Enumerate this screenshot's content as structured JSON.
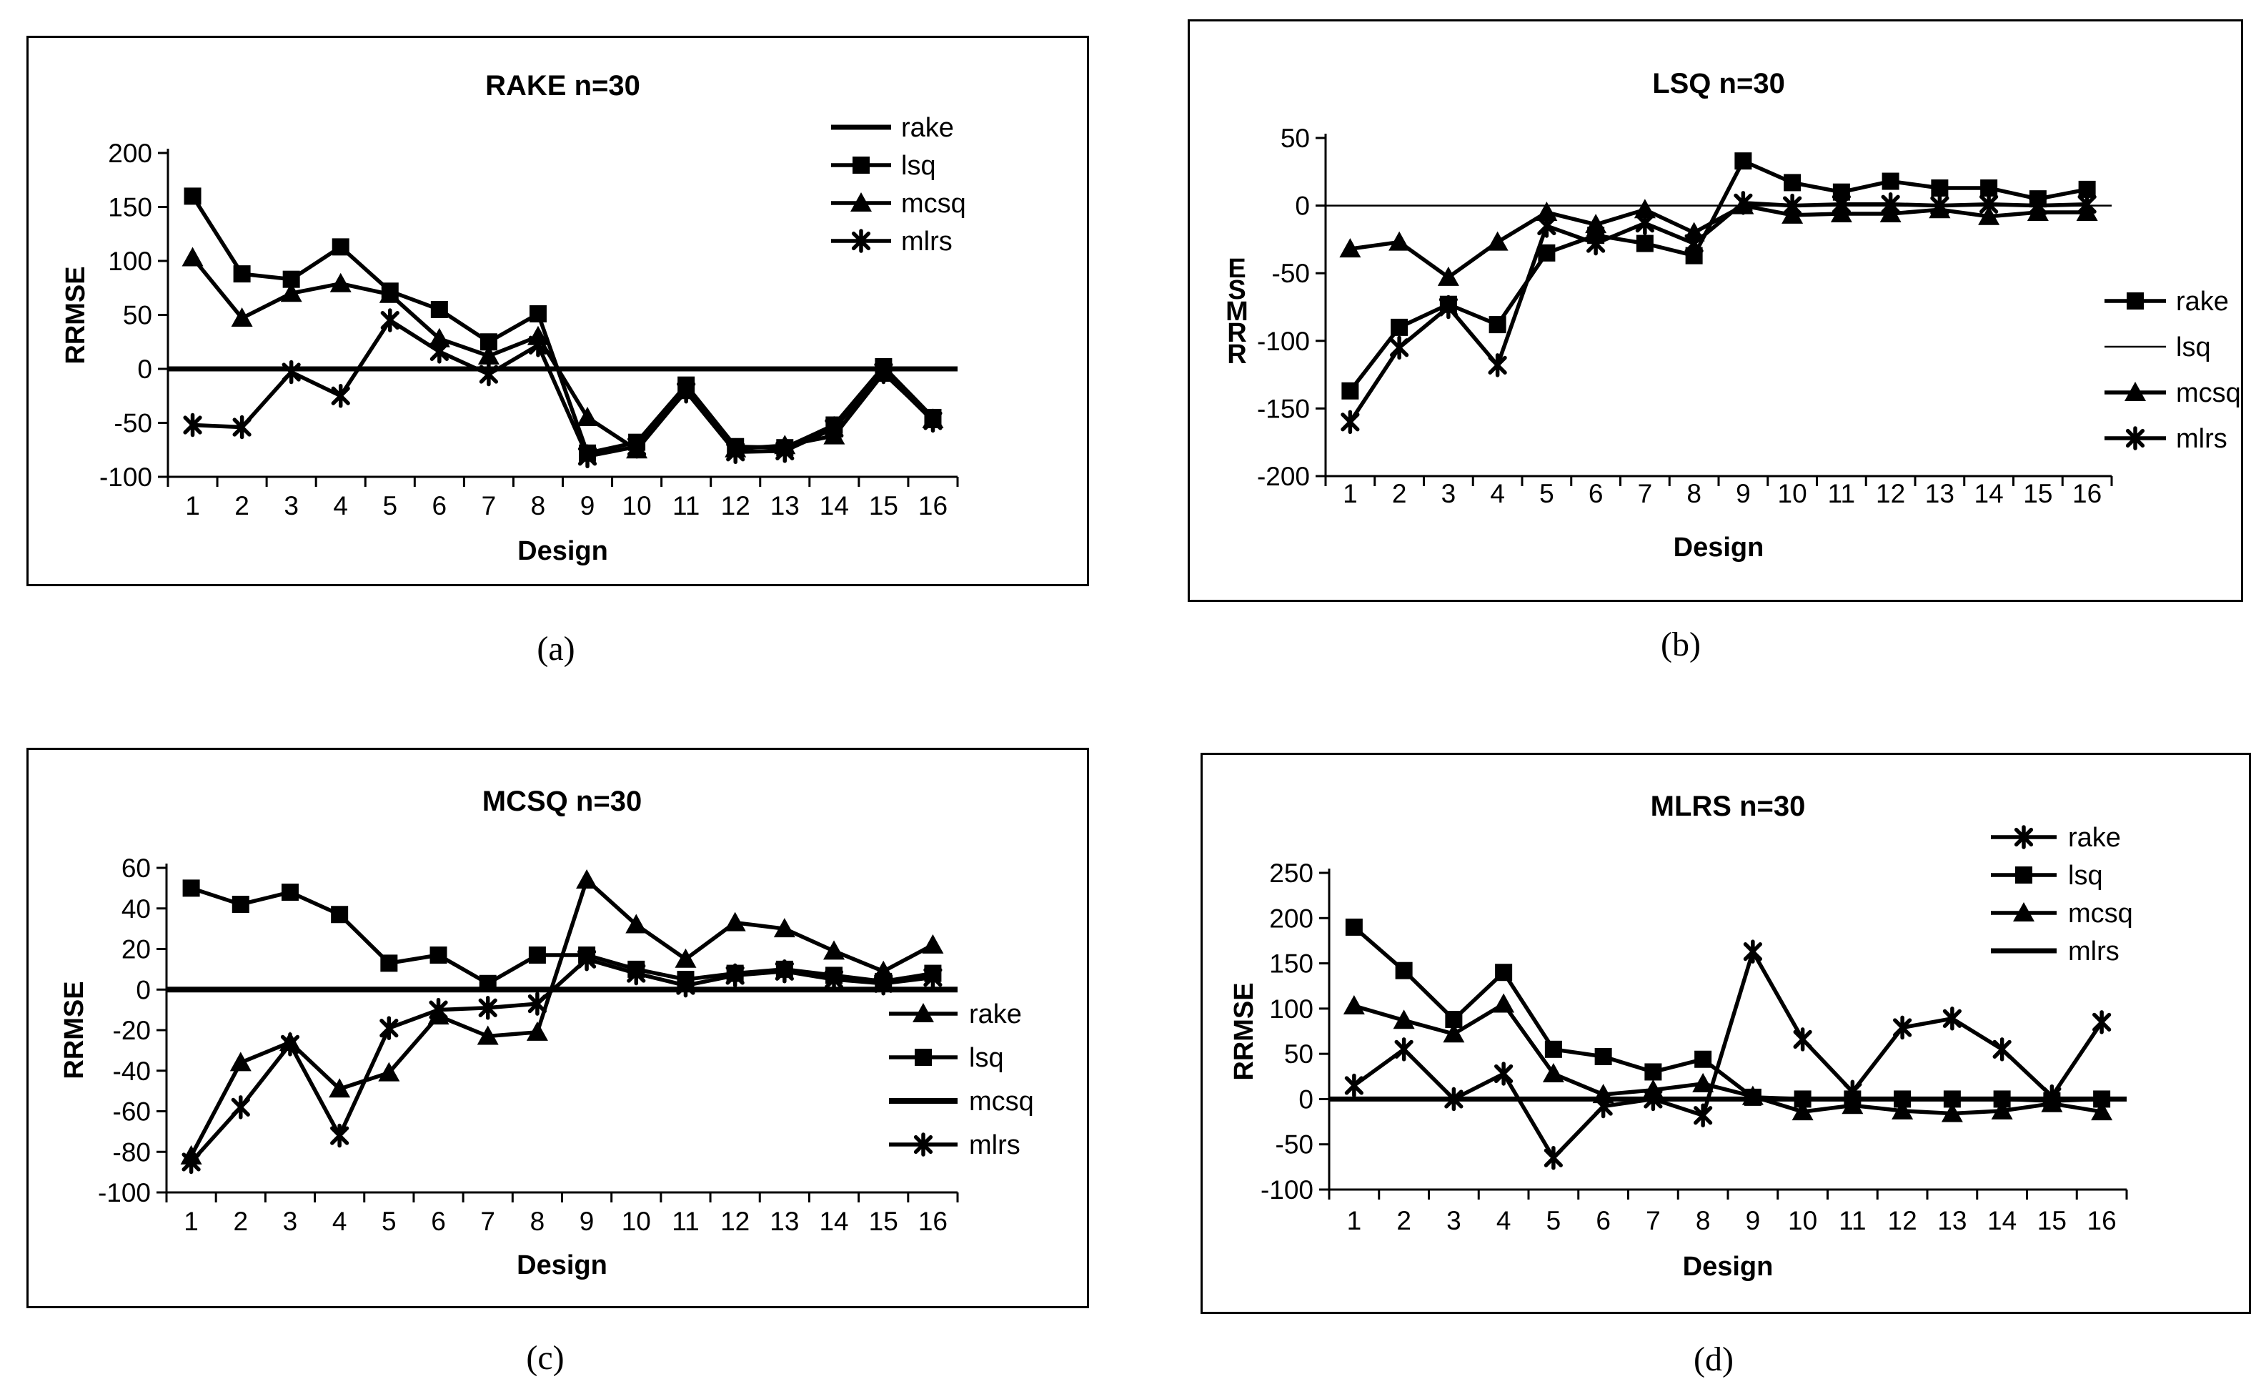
{
  "page": {
    "background": "#ffffff",
    "ink": "#000000"
  },
  "chart_data": [
    {
      "id": "a",
      "type": "line",
      "caption": "(a)",
      "title": "RAKE  n=30",
      "xlabel": "Design",
      "ylabel": "RRMSE",
      "ylabel_style": "rotated",
      "x": [
        1,
        2,
        3,
        4,
        5,
        6,
        7,
        8,
        9,
        10,
        11,
        12,
        13,
        14,
        15,
        16
      ],
      "ylim": [
        -100,
        200
      ],
      "yticks": [
        200,
        150,
        100,
        50,
        0,
        -50,
        -100
      ],
      "grid": false,
      "legend_position": "top-right-inside",
      "series": [
        {
          "name": "rake",
          "marker": "line",
          "flat": true,
          "values": [
            0,
            0,
            0,
            0,
            0,
            0,
            0,
            0,
            0,
            0,
            0,
            0,
            0,
            0,
            0,
            0
          ]
        },
        {
          "name": "lsq",
          "marker": "square",
          "values": [
            160,
            88,
            83,
            113,
            72,
            55,
            25,
            51,
            -78,
            -68,
            -15,
            -72,
            -73,
            -52,
            2,
            -45
          ]
        },
        {
          "name": "mcsq",
          "marker": "triangle",
          "values": [
            103,
            47,
            70,
            79,
            69,
            28,
            12,
            30,
            -45,
            -75,
            -20,
            -74,
            -71,
            -62,
            -4,
            -47
          ]
        },
        {
          "name": "mlrs",
          "marker": "star",
          "values": [
            -52,
            -54,
            -3,
            -25,
            45,
            16,
            -5,
            22,
            -81,
            -72,
            -21,
            -77,
            -76,
            -55,
            -3,
            -48
          ]
        }
      ]
    },
    {
      "id": "b",
      "type": "line",
      "caption": "(b)",
      "title": "LSQ  n=30",
      "xlabel": "Design",
      "ylabel": "RRMSE",
      "ylabel_style": "stacked-reversed",
      "x": [
        1,
        2,
        3,
        4,
        5,
        6,
        7,
        8,
        9,
        10,
        11,
        12,
        13,
        14,
        15,
        16
      ],
      "ylim": [
        -200,
        50
      ],
      "yticks": [
        50,
        0,
        -50,
        -100,
        -150,
        -200
      ],
      "grid": false,
      "legend_position": "right-outside",
      "series": [
        {
          "name": "rake",
          "marker": "square",
          "values": [
            -137,
            -90,
            -73,
            -88,
            -35,
            -22,
            -28,
            -37,
            33,
            17,
            10,
            18,
            13,
            13,
            5,
            12
          ]
        },
        {
          "name": "lsq",
          "marker": "line",
          "flat": true,
          "values": [
            0,
            0,
            0,
            0,
            0,
            0,
            0,
            0,
            0,
            0,
            0,
            0,
            0,
            0,
            0,
            0
          ]
        },
        {
          "name": "mcsq",
          "marker": "triangle",
          "values": [
            -32,
            -27,
            -53,
            -27,
            -5,
            -14,
            -3,
            -20,
            0,
            -7,
            -6,
            -6,
            -3,
            -8,
            -5,
            -5
          ]
        },
        {
          "name": "mlrs",
          "marker": "star",
          "values": [
            -160,
            -105,
            -75,
            -118,
            -15,
            -28,
            -13,
            -28,
            2,
            0,
            1,
            1,
            0,
            1,
            0,
            1
          ]
        }
      ]
    },
    {
      "id": "c",
      "type": "line",
      "caption": "(c)",
      "title": "MCSQ  n=30",
      "xlabel": "Design",
      "ylabel": "RRMSE",
      "ylabel_style": "rotated",
      "x": [
        1,
        2,
        3,
        4,
        5,
        6,
        7,
        8,
        9,
        10,
        11,
        12,
        13,
        14,
        15,
        16
      ],
      "ylim": [
        -100,
        60
      ],
      "yticks": [
        60,
        40,
        20,
        0,
        -20,
        -40,
        -60,
        -80,
        -100
      ],
      "grid": false,
      "legend_position": "bottom-right-inside",
      "series": [
        {
          "name": "rake",
          "marker": "triangle",
          "values": [
            -82,
            -36,
            -26,
            -49,
            -41,
            -13,
            -23,
            -21,
            54,
            32,
            15,
            33,
            30,
            19,
            9,
            22
          ]
        },
        {
          "name": "lsq",
          "marker": "square",
          "values": [
            50,
            42,
            48,
            37,
            13,
            17,
            3,
            17,
            17,
            10,
            5,
            8,
            10,
            7,
            4,
            8
          ]
        },
        {
          "name": "mcsq",
          "marker": "line",
          "flat": true,
          "values": [
            0,
            0,
            0,
            0,
            0,
            0,
            0,
            0,
            0,
            0,
            0,
            0,
            0,
            0,
            0,
            0
          ]
        },
        {
          "name": "mlrs",
          "marker": "star",
          "values": [
            -85,
            -58,
            -27,
            -72,
            -19,
            -10,
            -9,
            -7,
            15,
            8,
            2,
            7,
            9,
            5,
            3,
            6
          ]
        }
      ]
    },
    {
      "id": "d",
      "type": "line",
      "caption": "(d)",
      "title": "MLRS  n=30",
      "xlabel": "Design",
      "ylabel": "RRMSE",
      "ylabel_style": "rotated",
      "x": [
        1,
        2,
        3,
        4,
        5,
        6,
        7,
        8,
        9,
        10,
        11,
        12,
        13,
        14,
        15,
        16
      ],
      "ylim": [
        -100,
        250
      ],
      "yticks": [
        250,
        200,
        150,
        100,
        50,
        0,
        -50,
        -100
      ],
      "grid": false,
      "legend_position": "top-right-inside",
      "series": [
        {
          "name": "rake",
          "marker": "star",
          "values": [
            15,
            55,
            0,
            28,
            -65,
            -8,
            0,
            -18,
            163,
            66,
            8,
            79,
            89,
            55,
            3,
            85
          ]
        },
        {
          "name": "lsq",
          "marker": "square",
          "values": [
            190,
            142,
            88,
            140,
            55,
            47,
            30,
            44,
            2,
            0,
            0,
            0,
            0,
            0,
            -2,
            0
          ]
        },
        {
          "name": "mcsq",
          "marker": "triangle",
          "values": [
            103,
            87,
            72,
            105,
            28,
            5,
            10,
            17,
            3,
            -14,
            -7,
            -13,
            -16,
            -13,
            -5,
            -14
          ]
        },
        {
          "name": "mlrs",
          "marker": "line",
          "flat": true,
          "values": [
            0,
            0,
            0,
            0,
            0,
            0,
            0,
            0,
            0,
            0,
            0,
            0,
            0,
            0,
            0,
            0
          ]
        }
      ]
    }
  ]
}
